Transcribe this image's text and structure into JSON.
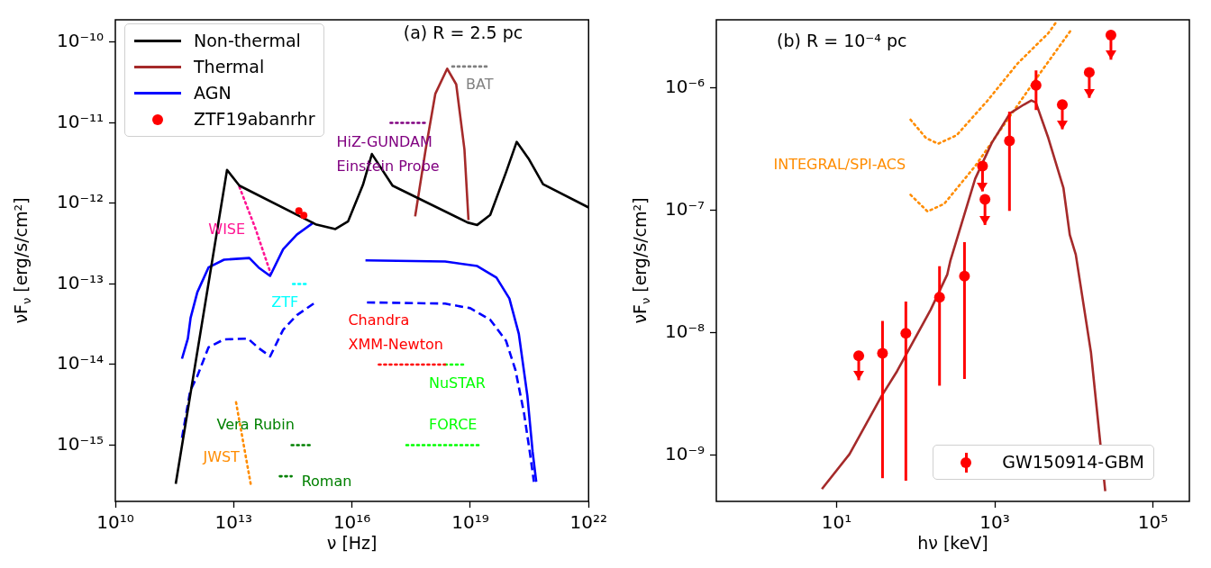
{
  "chart_data": [
    {
      "type": "line",
      "title": "(a) R = 2.5 pc",
      "xlabel": "ν [Hz]",
      "ylabel": "νF$_{ν}$ [erg/s/cm²]",
      "log": "xy",
      "grid": false,
      "legend": "top left",
      "xlim": [
        10000000000.0,
        1e+22
      ],
      "xticks": [
        {
          "value": 10000000000.0,
          "label": "10¹⁰"
        },
        {
          "value": 10000000000000.0,
          "label": "10¹³"
        },
        {
          "value": 1e+16,
          "label": "10¹⁶"
        },
        {
          "value": 1e+19,
          "label": "10¹⁹"
        },
        {
          "value": 1e+22,
          "label": "10²²"
        }
      ],
      "ylim": [
        2e-16,
        1.9e-10
      ],
      "yticks": [
        {
          "value": 1e-15,
          "label": "10⁻¹⁵"
        },
        {
          "value": 1e-14,
          "label": "10⁻¹⁴"
        },
        {
          "value": 1e-13,
          "label": "10⁻¹³"
        },
        {
          "value": 1e-12,
          "label": "10⁻¹²"
        },
        {
          "value": 1e-11,
          "label": "10⁻¹¹"
        },
        {
          "value": 1e-10,
          "label": "10⁻¹⁰"
        }
      ],
      "series": [
        {
          "name": "Non-thermal",
          "color": "#000000",
          "line_style": "solid",
          "x": [
            340000000000.0,
            6800000000000.0,
            14000000000000.0,
            1200000000000000.0,
            3800000000000000.0,
            8000000000000000.0,
            1.9e+16,
            3.2e+16,
            1.07e+17,
            8.5e+18,
            1.5e+19,
            3.2e+19,
            8.1e+19,
            1.5e+20,
            3e+20,
            7e+20,
            1e+22
          ],
          "values": [
            3.3e-16,
            2.6e-12,
            1.66e-12,
            5.5e-13,
            4.8e-13,
            6e-13,
            1.7e-12,
            4.1e-12,
            1.66e-12,
            5.8e-13,
            5.4e-13,
            7.2e-13,
            2.45e-12,
            5.8e-12,
            3.6e-12,
            1.73e-12,
            8.9e-13
          ]
        },
        {
          "name": "Thermal",
          "color": "#a52a2a",
          "line_style": "solid",
          "x": [
            4e+17,
            7.4e+17,
            1.3e+18,
            2.6e+18,
            4.4e+18,
            7.1e+18,
            9e+18
          ],
          "values": [
            6.9e-13,
            4.7e-12,
            2.3e-11,
            4.7e-11,
            3e-11,
            4.7e-12,
            6.2e-13
          ]
        },
        {
          "name": "AGN",
          "color": "#0000ff",
          "line_style": "solid",
          "x": [
            490000000000.0,
            690000000000.0,
            810000000000.0,
            1200000000000.0,
            2300000000000.0,
            5700000000000.0,
            25000000000000.0,
            43000000000000.0,
            84000000000000.0,
            180000000000000.0,
            400000000000000.0,
            1070000000000000.0,
            5000000000000000.0,
            2.2e+16,
            2.3e+18,
            1.5e+19,
            4.6e+19,
            9.8e+19,
            1.7e+20,
            2.8e+20,
            3.8e+20,
            4.7e+20
          ],
          "values": [
            1.18e-14,
            2.1e-14,
            3.8e-14,
            7.9e-14,
            1.6e-13,
            2e-13,
            2.1e-13,
            1.6e-13,
            1.26e-13,
            2.7e-13,
            4.1e-13,
            5.8e-13,
            null,
            1.96e-13,
            1.9e-13,
            1.67e-13,
            1.2e-13,
            6.6e-14,
            2.4e-14,
            4.1e-15,
            8.3e-16,
            3.5e-16
          ]
        },
        {
          "color": "#0000ff",
          "line_style": "dashed",
          "x": [
            490000000000.0,
            790000000000.0,
            1200000000000.0,
            2300000000000.0,
            5700000000000.0,
            23000000000000.0,
            41000000000000.0,
            84000000000000.0,
            180000000000000.0,
            400000000000000.0,
            1070000000000000.0,
            5000000000000000.0,
            2.4e+16,
            2.3e+18,
            1e+19,
            3.2e+19,
            8.1e+19,
            1.4e+20,
            2.3e+20,
            3.3e+20,
            4.1e+20
          ],
          "values": [
            1.23e-15,
            4.7e-15,
            7.2e-15,
            1.63e-14,
            2.05e-14,
            2.1e-14,
            1.63e-14,
            1.26e-14,
            2.7e-14,
            4.1e-14,
            5.7e-14,
            null,
            5.9e-14,
            5.7e-14,
            5e-14,
            3.6e-14,
            1.96e-14,
            8.5e-15,
            2.5e-15,
            7.6e-16,
            3.5e-16
          ]
        },
        {
          "name": "ZTF19abanrhr",
          "type": "scatter",
          "color": "#ff0000",
          "marker": "circle",
          "x": [
            450000000000000.0,
            600000000000000.0
          ],
          "values": [
            8.1e-13,
            7.1e-13
          ]
        },
        {
          "name": "WISE",
          "color": "#ff1493",
          "line_style": "dotted",
          "x": [
            14000000000000.0,
            35000000000000.0,
            87000000000000.0
          ],
          "values": [
            1.6e-12,
            5e-13,
            1.35e-13
          ]
        },
        {
          "name": "ZTF",
          "color": "#00ffff",
          "line_style": "dotted",
          "x": [
            320000000000000.0,
            720000000000000.0
          ],
          "values": [
            1e-13,
            1e-13
          ]
        },
        {
          "name": "JWST",
          "color": "#ff8c00",
          "line_style": "dotted",
          "x": [
            11500000000000.0,
            28000000000000.0
          ],
          "values": [
            3.4e-15,
            3e-16
          ]
        },
        {
          "name": "Vera Rubin",
          "color": "#008000",
          "line_style": "dotted",
          "x": [
            295000000000000.0,
            910000000000000.0
          ],
          "values": [
            1e-15,
            1e-15
          ]
        },
        {
          "name": "Roman",
          "color": "#008000",
          "line_style": "dotted",
          "x": [
            148000000000000.0,
            295000000000000.0
          ],
          "values": [
            4.1e-16,
            4.1e-16
          ]
        },
        {
          "name": "Chandra\nXMM-Newton",
          "color": "#ff0000",
          "line_style": "dotted",
          "x": [
            4.8e+16,
            2.3e+18
          ],
          "values": [
            1e-14,
            1e-14
          ]
        },
        {
          "name": "NuSTAR",
          "color": "#00ff00",
          "line_style": "dotted",
          "x": [
            2.3e+18,
            7.1e+18
          ],
          "values": [
            1e-14,
            1e-14
          ]
        },
        {
          "name": "FORCE",
          "color": "#00ff00",
          "line_style": "dotted",
          "x": [
            2.4e+17,
            1.86e+19
          ],
          "values": [
            1e-15,
            1e-15
          ]
        },
        {
          "name": "HiZ-GUNDAM\nEinstein Probe",
          "color": "#800080",
          "line_style": "dotted",
          "x": [
            9.5e+16,
            8.1e+17
          ],
          "values": [
            1e-11,
            1e-11
          ]
        },
        {
          "name": "BAT",
          "color": "#808080",
          "line_style": "dotted",
          "x": [
            3.5e+18,
            2.9e+19
          ],
          "values": [
            5e-11,
            5e-11
          ]
        }
      ]
    },
    {
      "type": "scatter",
      "title": "(b) R = 10⁻⁴ pc",
      "xlabel": "hν [keV]",
      "ylabel": "νF$_{ν}$ [erg/s/cm²]",
      "log": "xy",
      "grid": false,
      "legend": "bottom right",
      "xlim": [
        0.3,
        290000.0
      ],
      "xticks": [
        {
          "value": 10,
          "label": "10¹"
        },
        {
          "value": 1000,
          "label": "10³"
        },
        {
          "value": 100000,
          "label": "10⁵"
        }
      ],
      "ylim": [
        4.2e-10,
        3.6e-06
      ],
      "yticks": [
        {
          "value": 1e-09,
          "label": "10⁻⁹"
        },
        {
          "value": 1e-08,
          "label": "10⁻⁸"
        },
        {
          "value": 1e-07,
          "label": "10⁻⁷"
        },
        {
          "value": 1e-06,
          "label": "10⁻⁶"
        }
      ],
      "series": [
        {
          "name": "GW150914-GBM",
          "type": "scatter",
          "color": "#ff0000",
          "marker": "circle",
          "x": [
            19,
            38,
            75,
            200,
            414,
            700,
            752,
            1535,
            3330,
            7160,
            15700,
            29500
          ],
          "values": [
            6.5e-09,
            6.8e-09,
            9.9e-09,
            1.95e-08,
            2.9e-08,
            2.3e-07,
            1.23e-07,
            3.7e-07,
            1.05e-06,
            7.3e-07,
            1.34e-06,
            2.7e-06
          ],
          "errors": [
            [
              4.1e-09,
              6.5e-09
            ],
            [
              6.5e-10,
              1.25e-08
            ],
            [
              6.2e-10,
              1.8e-08
            ],
            [
              3.7e-09,
              3.5e-08
            ],
            [
              4.2e-09,
              5.5e-08
            ],
            [
              1.43e-07,
              2.3e-07
            ],
            [
              7.6e-08,
              1.23e-07
            ],
            [
              9.9e-08,
              6.4e-07
            ],
            [
              6.6e-07,
              1.39e-06
            ],
            [
              4.6e-07,
              7.3e-07
            ],
            [
              8.3e-07,
              1.34e-06
            ],
            [
              1.7e-06,
              2.7e-06
            ]
          ]
        },
        {
          "type": "line",
          "color": "#a52a2a",
          "line_style": "solid",
          "x": [
            6.5,
            14.5,
            37,
            58,
            155,
            251,
            275,
            565,
            915,
            1560,
            2330,
            2900,
            3310,
            4760,
            7400,
            8900,
            10600,
            16500,
            25000
          ],
          "values": [
            5.3e-10,
            1.02e-09,
            3.05e-09,
            4.85e-09,
            1.55e-08,
            3e-08,
            3.9e-08,
            1.81e-07,
            3.55e-07,
            6.2e-07,
            7.3e-07,
            7.9e-07,
            7.6e-07,
            3.9e-07,
            1.52e-07,
            6.3e-08,
            4.35e-08,
            6.9e-09,
            5.1e-10
          ]
        },
        {
          "name": "INTEGRAL/SPI-ACS",
          "type": "line",
          "color": "#ff8c00",
          "line_style": "dotted",
          "x": [
            86,
            135,
            192,
            328,
            800,
            1940,
            4760,
            5900
          ],
          "values": [
            5.5e-07,
            3.9e-07,
            3.5e-07,
            4.1e-07,
            7.8e-07,
            1.58e-06,
            2.8e-06,
            3.4e-06
          ]
        },
        {
          "type": "line",
          "color": "#ff8c00",
          "line_style": "dotted",
          "x": [
            86,
            141,
            229,
            565,
            1365,
            3310,
            9000
          ],
          "values": [
            1.34e-07,
            9.8e-08,
            1.13e-07,
            2.3e-07,
            5.2e-07,
            1.18e-06,
            2.9e-06
          ]
        }
      ]
    }
  ]
}
